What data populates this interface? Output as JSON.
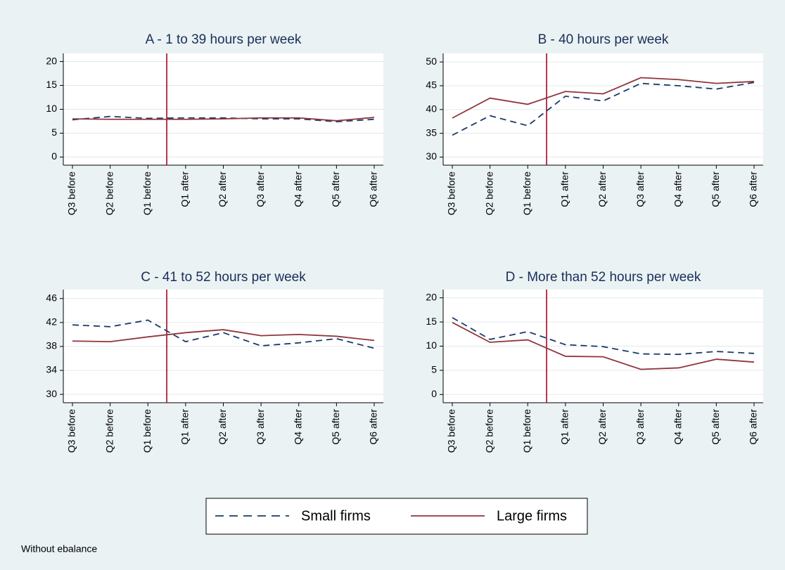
{
  "chart_data": [
    {
      "type": "line",
      "title": "A - 1 to 39 hours per week",
      "categories": [
        "Q3 before",
        "Q2 before",
        "Q1 before",
        "Q1 after",
        "Q2 after",
        "Q3 after",
        "Q4 after",
        "Q5 after",
        "Q6 after"
      ],
      "series": [
        {
          "name": "Small firms",
          "color": "#1a3a6b",
          "dash": true,
          "values": [
            7.8,
            8.5,
            8.1,
            8.2,
            8.2,
            8.0,
            8.0,
            7.4,
            7.9
          ]
        },
        {
          "name": "Large firms",
          "color": "#90353b",
          "dash": false,
          "values": [
            8.0,
            7.9,
            7.9,
            7.9,
            8.0,
            8.2,
            8.2,
            7.6,
            8.3
          ]
        }
      ],
      "ylim": [
        -1.7,
        21.7
      ],
      "yticks": [
        0,
        5,
        10,
        15,
        20
      ],
      "grid": true
    },
    {
      "type": "line",
      "title": "B - 40 hours per week",
      "categories": [
        "Q3 before",
        "Q2 before",
        "Q1 before",
        "Q1 after",
        "Q2 after",
        "Q3 after",
        "Q4 after",
        "Q5 after",
        "Q6 after"
      ],
      "series": [
        {
          "color": "#1a3a6b",
          "dash": true,
          "values": [
            34.6,
            38.7,
            36.6,
            42.8,
            41.8,
            45.5,
            45.0,
            44.3,
            45.7
          ]
        },
        {
          "color": "#90353b",
          "dash": false,
          "values": [
            38.2,
            42.4,
            41.1,
            43.8,
            43.3,
            46.7,
            46.3,
            45.5,
            45.9
          ]
        }
      ],
      "ylim": [
        28.3,
        51.8
      ],
      "yticks": [
        30,
        35,
        40,
        45,
        50
      ],
      "grid": true
    },
    {
      "type": "line",
      "title": "C - 41 to 52 hours per week",
      "categories": [
        "Q3 before",
        "Q2 before",
        "Q1 before",
        "Q1 after",
        "Q2 after",
        "Q3 after",
        "Q4 after",
        "Q5 after",
        "Q6 after"
      ],
      "series": [
        {
          "color": "#1a3a6b",
          "dash": true,
          "values": [
            41.6,
            41.3,
            42.4,
            38.8,
            40.3,
            38.1,
            38.6,
            39.3,
            37.7
          ]
        },
        {
          "color": "#90353b",
          "dash": false,
          "values": [
            38.9,
            38.8,
            39.6,
            40.3,
            40.8,
            39.8,
            40.0,
            39.7,
            39.0
          ]
        }
      ],
      "ylim": [
        28.6,
        47.5
      ],
      "yticks": [
        30,
        34,
        38,
        42,
        46
      ],
      "grid": true
    },
    {
      "type": "line",
      "title": "D - More than 52 hours per week",
      "categories": [
        "Q3 before",
        "Q2 before",
        "Q1 before",
        "Q1 after",
        "Q2 after",
        "Q3 after",
        "Q4 after",
        "Q5 after",
        "Q6 after"
      ],
      "series": [
        {
          "color": "#1a3a6b",
          "dash": true,
          "values": [
            15.9,
            11.4,
            13.0,
            10.3,
            9.9,
            8.4,
            8.3,
            8.9,
            8.5
          ]
        },
        {
          "color": "#90353b",
          "dash": false,
          "values": [
            14.9,
            10.8,
            11.3,
            7.9,
            7.8,
            5.2,
            5.5,
            7.3,
            6.7
          ]
        }
      ],
      "ylim": [
        -1.7,
        21.7
      ],
      "yticks": [
        0,
        5,
        10,
        15,
        20
      ],
      "grid": true
    }
  ],
  "note": "Without ebalance"
}
